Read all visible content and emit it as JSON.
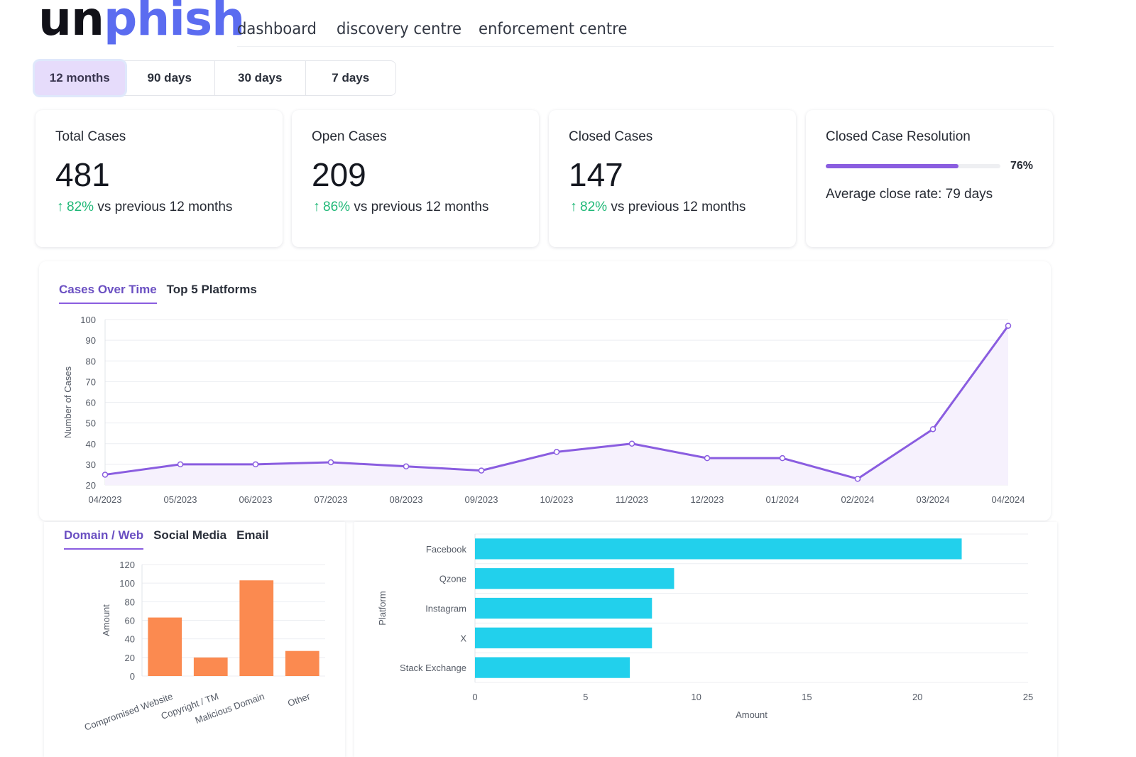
{
  "brand": {
    "part1": "un",
    "part2": "phish",
    "color1": "#111118",
    "color2": "#5b6cf0"
  },
  "nav": [
    "dashboard",
    "discovery centre",
    "enforcement centre"
  ],
  "periods": {
    "options": [
      "12 months",
      "90 days",
      "30 days",
      "7 days"
    ],
    "selected": "12 months"
  },
  "stats": [
    {
      "title": "Total Cases",
      "value": "481",
      "change": "82%",
      "suffix": "vs previous 12 months"
    },
    {
      "title": "Open Cases",
      "value": "209",
      "change": "86%",
      "suffix": "vs previous 12 months"
    },
    {
      "title": "Closed Cases",
      "value": "147",
      "change": "82%",
      "suffix": "vs previous 12 months"
    }
  ],
  "resolution": {
    "title": "Closed Case Resolution",
    "percent_label": "76%",
    "percent": 76,
    "avg": "Average close rate: 79 days"
  },
  "tabs_main": [
    "Cases Over Time",
    "Top 5 Platforms"
  ],
  "tabs_type": [
    "Domain / Web",
    "Social Media",
    "Email"
  ],
  "colors": {
    "accent": "#8a5de0",
    "line_fill": "#f6f1fd",
    "positive": "#1fb877",
    "bar_orange": "#fb8a50",
    "bar_cyan": "#22d0ec"
  },
  "chart_data": [
    {
      "type": "line",
      "title": "Cases Over Time",
      "ylabel": "Number of Cases",
      "xlabel": "",
      "ylim": [
        20,
        100
      ],
      "yticks": [
        100,
        90,
        80,
        70,
        60,
        50,
        40,
        30,
        20
      ],
      "x": [
        "04/2023",
        "05/2023",
        "06/2023",
        "07/2023",
        "08/2023",
        "09/2023",
        "10/2023",
        "11/2023",
        "12/2023",
        "01/2024",
        "02/2024",
        "03/2024",
        "04/2024"
      ],
      "values": [
        25,
        30,
        30,
        31,
        29,
        27,
        36,
        40,
        33,
        33,
        23,
        47,
        97
      ],
      "grid": true
    },
    {
      "type": "bar",
      "title": "Domain / Web",
      "ylabel": "Amount",
      "ylim": [
        0,
        120
      ],
      "yticks": [
        120,
        100,
        80,
        60,
        40,
        20,
        0
      ],
      "categories": [
        "Compromised Website",
        "Copyright / TM",
        "Malicious Domain",
        "Other"
      ],
      "values": [
        63,
        20,
        103,
        27
      ],
      "grid": true
    },
    {
      "type": "bar",
      "orientation": "horizontal",
      "title": "Top 5 Platforms",
      "ylabel": "Platform",
      "xlabel": "Amount",
      "xlim": [
        0,
        25
      ],
      "xticks": [
        0,
        5,
        10,
        15,
        20,
        25
      ],
      "categories": [
        "Facebook",
        "Qzone",
        "Instagram",
        "X",
        "Stack Exchange"
      ],
      "values": [
        22,
        9,
        8,
        8,
        7
      ],
      "grid": true
    }
  ]
}
